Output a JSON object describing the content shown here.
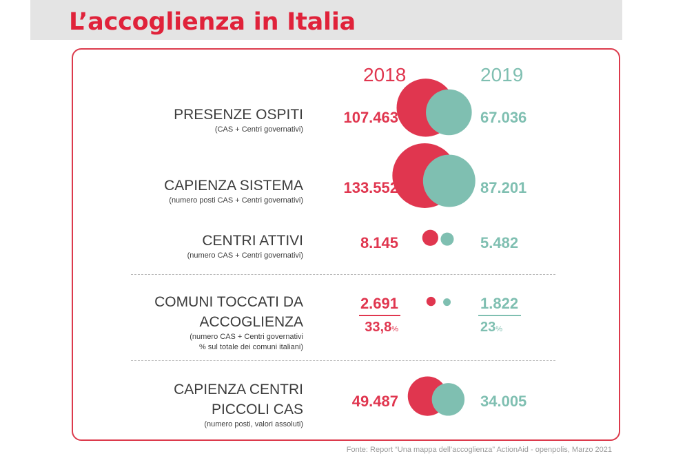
{
  "title": "L’accoglienza in Italia",
  "colors": {
    "y2018": "#e0364f",
    "y2019": "#7fbfb1",
    "border": "#dc3a4c",
    "title": "#e0223a"
  },
  "years": {
    "y2018": "2018",
    "y2019": "2019"
  },
  "chart_data": {
    "type": "bubble-comparison",
    "series": [
      {
        "name": "2018",
        "values": [
          107463,
          133552,
          8145,
          2691,
          49487
        ]
      },
      {
        "name": "2019",
        "values": [
          67036,
          87201,
          5482,
          1822,
          34005
        ]
      }
    ]
  },
  "rows": [
    {
      "label": "PRESENZE OSPITI",
      "sub": "(CAS + Centri governativi)",
      "v2018": "107.463",
      "v2019": "67.036"
    },
    {
      "label": "CAPIENZA SISTEMA",
      "sub": "(numero posti CAS + Centri governativi)",
      "v2018": "133.552",
      "v2019": "87.201"
    },
    {
      "label": "CENTRI ATTIVI",
      "sub": "(numero CAS + Centri governativi)",
      "v2018": "8.145",
      "v2019": "5.482"
    },
    {
      "label_line1": "COMUNI TOCCATI DA",
      "label_line2": "ACCOGLIENZA",
      "sub_line1": "(numero CAS + Centri governativi",
      "sub_line2": "% sul totale dei comuni italiani)",
      "v2018": "2.691",
      "v2019": "1.822",
      "pct2018": "33,8",
      "pct2019": "23",
      "pct_unit": "%"
    },
    {
      "label_line1": "CAPIENZA CENTRI",
      "label_line2": "PICCOLI CAS",
      "sub": "(numero posti, valori assoluti)",
      "v2018": "49.487",
      "v2019": "34.005"
    }
  ],
  "source": "Fonte: Report “Una mappa dell’accoglienza” ActionAid - openpolis, Marzo 2021"
}
